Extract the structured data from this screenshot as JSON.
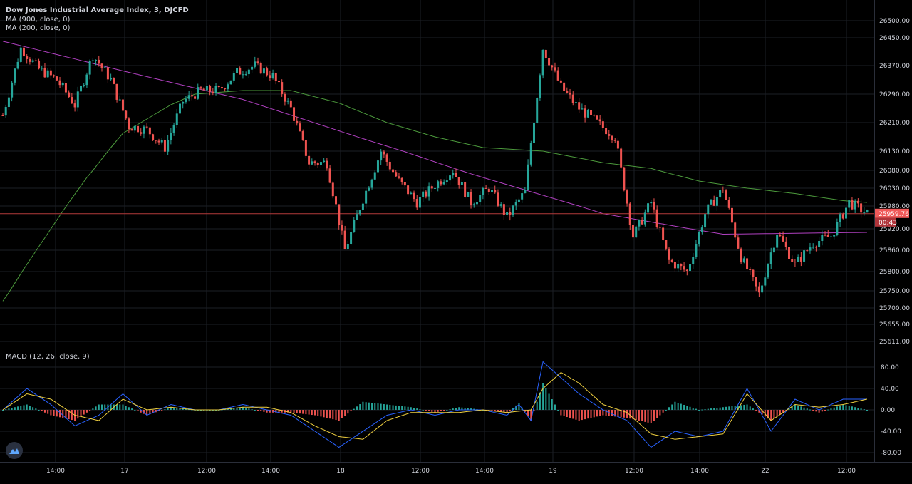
{
  "legend": {
    "title": "Dow Jones Industrial Average Index, 3, DJCFD",
    "ma1": "MA (900, close, 0)",
    "ma2": "MA (200, close, 0)",
    "macd": "MACD (12, 26, close, 9)"
  },
  "price_badge": {
    "value": "25959.76",
    "countdown": "00:43",
    "color": "#f05a5a"
  },
  "colors": {
    "up": "#26a69a",
    "down": "#ef5350",
    "ma900": "#b040c0",
    "ma200": "#4c9a3c",
    "macd": "#2962ff",
    "signal": "#f0d040"
  },
  "chart_data": [
    {
      "type": "candlestick",
      "title": "Dow Jones Industrial Average Index, 3, DJCFD",
      "x_ticks": [
        "14:00",
        "17",
        "12:00",
        "14:00",
        "18",
        "12:00",
        "14:00",
        "19",
        "12:00",
        "14:00",
        "22",
        "12:00"
      ],
      "y_ticks": [
        26500,
        26450,
        26370,
        26290,
        26210,
        26130,
        26080,
        26030,
        25980,
        25920,
        25860,
        25800,
        25750,
        25700,
        25655,
        25611
      ],
      "ylim": [
        25611,
        26500
      ],
      "current_price": 25959.76,
      "close_path": [
        [
          0,
          26230
        ],
        [
          3,
          26420
        ],
        [
          6,
          26360
        ],
        [
          9,
          26330
        ],
        [
          12,
          26260
        ],
        [
          15,
          26400
        ],
        [
          18,
          26330
        ],
        [
          21,
          26200
        ],
        [
          24,
          26190
        ],
        [
          27,
          26140
        ],
        [
          30,
          26270
        ],
        [
          33,
          26300
        ],
        [
          36,
          26300
        ],
        [
          39,
          26350
        ],
        [
          42,
          26370
        ],
        [
          45,
          26340
        ],
        [
          48,
          26250
        ],
        [
          51,
          26100
        ],
        [
          54,
          26100
        ],
        [
          57,
          25860
        ],
        [
          60,
          26000
        ],
        [
          63,
          26130
        ],
        [
          66,
          26050
        ],
        [
          69,
          25990
        ],
        [
          72,
          26040
        ],
        [
          75,
          26080
        ],
        [
          78,
          25990
        ],
        [
          81,
          26030
        ],
        [
          84,
          25950
        ],
        [
          87,
          26020
        ],
        [
          90,
          26420
        ],
        [
          93,
          26310
        ],
        [
          96,
          26250
        ],
        [
          99,
          26210
        ],
        [
          102,
          26170
        ],
        [
          105,
          25900
        ],
        [
          108,
          25990
        ],
        [
          111,
          25830
        ],
        [
          114,
          25800
        ],
        [
          117,
          25960
        ],
        [
          120,
          26030
        ],
        [
          123,
          25840
        ],
        [
          126,
          25740
        ],
        [
          129,
          25910
        ],
        [
          132,
          25820
        ],
        [
          135,
          25880
        ],
        [
          138,
          25900
        ],
        [
          141,
          25990
        ],
        [
          144,
          25960
        ]
      ],
      "series": [
        {
          "name": "MA (900, close, 0)",
          "values": [
            [
              0,
              26440
            ],
            [
              20,
              26355
            ],
            [
              40,
              26275
            ],
            [
              60,
              26165
            ],
            [
              80,
              26060
            ],
            [
              100,
              25960
            ],
            [
              120,
              25905
            ],
            [
              144,
              25910
            ]
          ]
        },
        {
          "name": "MA (200, close, 0)",
          "values": [
            [
              0,
              25720
            ],
            [
              8,
              25920
            ],
            [
              14,
              26060
            ],
            [
              20,
              26180
            ],
            [
              28,
              26260
            ],
            [
              32,
              26290
            ],
            [
              40,
              26300
            ],
            [
              48,
              26300
            ],
            [
              56,
              26265
            ],
            [
              64,
              26210
            ],
            [
              72,
              26170
            ],
            [
              80,
              26140
            ],
            [
              90,
              26130
            ],
            [
              100,
              26100
            ],
            [
              108,
              26085
            ],
            [
              116,
              26050
            ],
            [
              124,
              26030
            ],
            [
              132,
              26015
            ],
            [
              140,
              25995
            ],
            [
              144,
              25990
            ]
          ]
        }
      ]
    },
    {
      "type": "bar",
      "title": "MACD (12, 26, close, 9)",
      "y_ticks": [
        80,
        40,
        0,
        -40,
        -80
      ],
      "ylim": [
        -110,
        110
      ],
      "macd": [
        [
          0,
          0
        ],
        [
          4,
          40
        ],
        [
          8,
          10
        ],
        [
          12,
          -30
        ],
        [
          16,
          -10
        ],
        [
          20,
          30
        ],
        [
          24,
          -10
        ],
        [
          28,
          10
        ],
        [
          32,
          0
        ],
        [
          36,
          0
        ],
        [
          40,
          10
        ],
        [
          44,
          0
        ],
        [
          48,
          -10
        ],
        [
          52,
          -40
        ],
        [
          56,
          -70
        ],
        [
          60,
          -40
        ],
        [
          64,
          -10
        ],
        [
          68,
          0
        ],
        [
          72,
          -10
        ],
        [
          76,
          0
        ],
        [
          80,
          0
        ],
        [
          84,
          -10
        ],
        [
          86,
          10
        ],
        [
          88,
          -20
        ],
        [
          90,
          90
        ],
        [
          93,
          60
        ],
        [
          96,
          30
        ],
        [
          100,
          0
        ],
        [
          104,
          -20
        ],
        [
          108,
          -70
        ],
        [
          112,
          -40
        ],
        [
          116,
          -50
        ],
        [
          120,
          -40
        ],
        [
          124,
          40
        ],
        [
          128,
          -40
        ],
        [
          132,
          20
        ],
        [
          136,
          0
        ],
        [
          140,
          20
        ],
        [
          144,
          20
        ]
      ],
      "signal": [
        [
          0,
          0
        ],
        [
          4,
          30
        ],
        [
          8,
          20
        ],
        [
          12,
          -10
        ],
        [
          16,
          -20
        ],
        [
          20,
          20
        ],
        [
          24,
          0
        ],
        [
          28,
          5
        ],
        [
          32,
          0
        ],
        [
          36,
          0
        ],
        [
          40,
          5
        ],
        [
          44,
          5
        ],
        [
          48,
          -5
        ],
        [
          52,
          -30
        ],
        [
          56,
          -50
        ],
        [
          60,
          -55
        ],
        [
          64,
          -20
        ],
        [
          68,
          -5
        ],
        [
          72,
          -5
        ],
        [
          76,
          -5
        ],
        [
          80,
          0
        ],
        [
          84,
          -5
        ],
        [
          88,
          0
        ],
        [
          90,
          40
        ],
        [
          93,
          70
        ],
        [
          96,
          50
        ],
        [
          100,
          10
        ],
        [
          104,
          -5
        ],
        [
          108,
          -45
        ],
        [
          112,
          -55
        ],
        [
          116,
          -50
        ],
        [
          120,
          -45
        ],
        [
          124,
          30
        ],
        [
          128,
          -20
        ],
        [
          132,
          10
        ],
        [
          136,
          5
        ],
        [
          140,
          10
        ],
        [
          144,
          20
        ]
      ]
    }
  ]
}
